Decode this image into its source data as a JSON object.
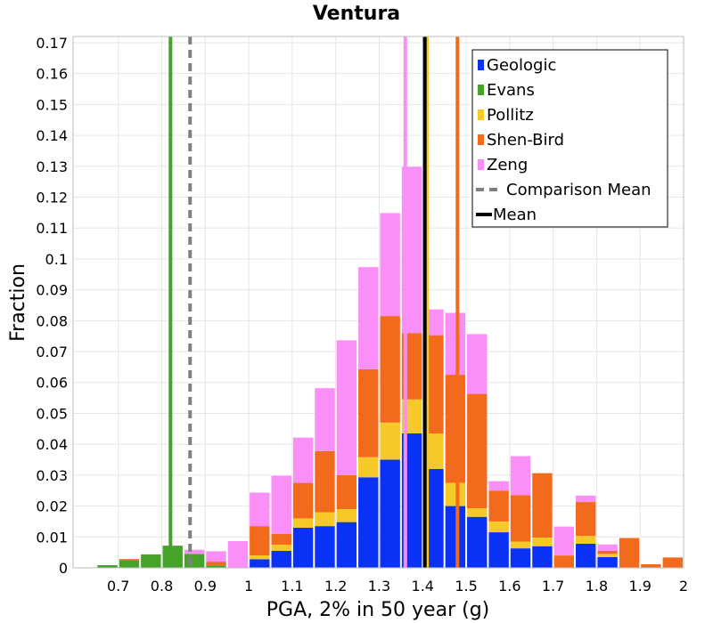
{
  "chart_data": {
    "type": "bar",
    "stacked": true,
    "title": "Ventura",
    "xlabel": "PGA, 2% in 50 year (g)",
    "ylabel": "Fraction",
    "xlim": [
      0.6,
      2.0
    ],
    "ylim": [
      0,
      0.172
    ],
    "bin_width": 0.05,
    "xticks": [
      0.7,
      0.8,
      0.9,
      1,
      1.1,
      1.2,
      1.3,
      1.4,
      1.5,
      1.6,
      1.7,
      1.8,
      1.9,
      2
    ],
    "xtick_labels": [
      "0.7",
      "0.8",
      "0.9",
      "1",
      "1.1",
      "1.2",
      "1.3",
      "1.4",
      "1.5",
      "1.6",
      "1.7",
      "1.8",
      "1.9",
      "2"
    ],
    "yticks": [
      0,
      0.01,
      0.02,
      0.03,
      0.04,
      0.05,
      0.06,
      0.07,
      0.08,
      0.09,
      0.1,
      0.11,
      0.12,
      0.13,
      0.14,
      0.15,
      0.16,
      0.17
    ],
    "ytick_labels": [
      "0",
      "0.01",
      "0.02",
      "0.03",
      "0.04",
      "0.05",
      "0.06",
      "0.07",
      "0.08",
      "0.09",
      "0.1",
      "0.11",
      "0.12",
      "0.13",
      "0.14",
      "0.15",
      "0.16",
      "0.17"
    ],
    "legend_position": "top-right",
    "bins": [
      {
        "x0": 0.65,
        "stack": {
          "Geologic": 0,
          "Evans": 0.001,
          "Pollitz": 0,
          "Shen-Bird": 0,
          "Zeng": 0
        }
      },
      {
        "x0": 0.7,
        "stack": {
          "Geologic": 0,
          "Evans": 0.0025,
          "Pollitz": 0,
          "Shen-Bird": 0.0005,
          "Zeng": 0
        }
      },
      {
        "x0": 0.75,
        "stack": {
          "Geologic": 0,
          "Evans": 0.0045,
          "Pollitz": 0,
          "Shen-Bird": 0,
          "Zeng": 0
        }
      },
      {
        "x0": 0.8,
        "stack": {
          "Geologic": 0,
          "Evans": 0.0073,
          "Pollitz": 0,
          "Shen-Bird": 0,
          "Zeng": 0
        }
      },
      {
        "x0": 0.85,
        "stack": {
          "Geologic": 0,
          "Evans": 0.0045,
          "Pollitz": 0,
          "Shen-Bird": 0,
          "Zeng": 0.0015
        }
      },
      {
        "x0": 0.9,
        "stack": {
          "Geologic": 0,
          "Evans": 0.0008,
          "Pollitz": 0,
          "Shen-Bird": 0.0012,
          "Zeng": 0.0035
        }
      },
      {
        "x0": 0.95,
        "stack": {
          "Geologic": 0,
          "Evans": 0,
          "Pollitz": 0,
          "Shen-Bird": 0,
          "Zeng": 0.0088
        }
      },
      {
        "x0": 1.0,
        "stack": {
          "Geologic": 0.0028,
          "Evans": 0,
          "Pollitz": 0.0012,
          "Shen-Bird": 0.0095,
          "Zeng": 0.011
        }
      },
      {
        "x0": 1.05,
        "stack": {
          "Geologic": 0.0055,
          "Evans": 0,
          "Pollitz": 0.002,
          "Shen-Bird": 0.0035,
          "Zeng": 0.019
        }
      },
      {
        "x0": 1.1,
        "stack": {
          "Geologic": 0.013,
          "Evans": 0,
          "Pollitz": 0.003,
          "Shen-Bird": 0.0115,
          "Zeng": 0.0148
        }
      },
      {
        "x0": 1.15,
        "stack": {
          "Geologic": 0.0135,
          "Evans": 0,
          "Pollitz": 0.0045,
          "Shen-Bird": 0.0198,
          "Zeng": 0.0205
        }
      },
      {
        "x0": 1.2,
        "stack": {
          "Geologic": 0.0148,
          "Evans": 0,
          "Pollitz": 0.0042,
          "Shen-Bird": 0.011,
          "Zeng": 0.0438
        }
      },
      {
        "x0": 1.25,
        "stack": {
          "Geologic": 0.0293,
          "Evans": 0,
          "Pollitz": 0.0065,
          "Shen-Bird": 0.0285,
          "Zeng": 0.0332
        }
      },
      {
        "x0": 1.3,
        "stack": {
          "Geologic": 0.035,
          "Evans": 0,
          "Pollitz": 0.012,
          "Shen-Bird": 0.0345,
          "Zeng": 0.0335
        }
      },
      {
        "x0": 1.35,
        "stack": {
          "Geologic": 0.0435,
          "Evans": 0,
          "Pollitz": 0.011,
          "Shen-Bird": 0.0215,
          "Zeng": 0.054
        }
      },
      {
        "x0": 1.4,
        "stack": {
          "Geologic": 0.032,
          "Evans": 0,
          "Pollitz": 0.0115,
          "Shen-Bird": 0.0318,
          "Zeng": 0.0085
        }
      },
      {
        "x0": 1.45,
        "stack": {
          "Geologic": 0.02,
          "Evans": 0,
          "Pollitz": 0.0075,
          "Shen-Bird": 0.035,
          "Zeng": 0.0202
        }
      },
      {
        "x0": 1.5,
        "stack": {
          "Geologic": 0.0165,
          "Evans": 0,
          "Pollitz": 0.0028,
          "Shen-Bird": 0.037,
          "Zeng": 0.0195
        }
      },
      {
        "x0": 1.55,
        "stack": {
          "Geologic": 0.0115,
          "Evans": 0,
          "Pollitz": 0.0035,
          "Shen-Bird": 0.01,
          "Zeng": 0.0032
        }
      },
      {
        "x0": 1.6,
        "stack": {
          "Geologic": 0.0063,
          "Evans": 0,
          "Pollitz": 0.0022,
          "Shen-Bird": 0.015,
          "Zeng": 0.0128
        }
      },
      {
        "x0": 1.65,
        "stack": {
          "Geologic": 0.007,
          "Evans": 0,
          "Pollitz": 0.0028,
          "Shen-Bird": 0.021,
          "Zeng": 0
        }
      },
      {
        "x0": 1.7,
        "stack": {
          "Geologic": 0,
          "Evans": 0,
          "Pollitz": 0,
          "Shen-Bird": 0.004,
          "Zeng": 0.0095
        }
      },
      {
        "x0": 1.75,
        "stack": {
          "Geologic": 0.0078,
          "Evans": 0,
          "Pollitz": 0.0025,
          "Shen-Bird": 0.011,
          "Zeng": 0.0022
        }
      },
      {
        "x0": 1.8,
        "stack": {
          "Geologic": 0.0035,
          "Evans": 0,
          "Pollitz": 0.001,
          "Shen-Bird": 0.001,
          "Zeng": 0.0022
        }
      },
      {
        "x0": 1.85,
        "stack": {
          "Geologic": 0,
          "Evans": 0,
          "Pollitz": 0,
          "Shen-Bird": 0.0098,
          "Zeng": 0
        }
      },
      {
        "x0": 1.9,
        "stack": {
          "Geologic": 0,
          "Evans": 0,
          "Pollitz": 0,
          "Shen-Bird": 0.0013,
          "Zeng": 0
        }
      },
      {
        "x0": 1.95,
        "stack": {
          "Geologic": 0,
          "Evans": 0,
          "Pollitz": 0,
          "Shen-Bird": 0.0035,
          "Zeng": 0
        }
      }
    ],
    "series": [
      {
        "name": "Geologic",
        "color": "#0a32f5",
        "mean": 1.405
      },
      {
        "name": "Evans",
        "color": "#47a22a",
        "mean": 0.82
      },
      {
        "name": "Pollitz",
        "color": "#f5c928",
        "mean": 1.41
      },
      {
        "name": "Shen-Bird",
        "color": "#f26b1d",
        "mean": 1.48
      },
      {
        "name": "Zeng",
        "color": "#fb8ff8",
        "mean": 1.36
      }
    ],
    "lines": [
      {
        "name": "Comparison Mean",
        "x": 0.865,
        "color": "#808080",
        "style": "dashed"
      },
      {
        "name": "Mean",
        "x": 1.405,
        "color": "#000000",
        "style": "solid"
      }
    ],
    "legend": [
      {
        "label": "Geologic",
        "kind": "box",
        "color": "#0a32f5"
      },
      {
        "label": "Evans",
        "kind": "box",
        "color": "#47a22a"
      },
      {
        "label": "Pollitz",
        "kind": "box",
        "color": "#f5c928"
      },
      {
        "label": "Shen-Bird",
        "kind": "box",
        "color": "#f26b1d"
      },
      {
        "label": "Zeng",
        "kind": "box",
        "color": "#fb8ff8"
      },
      {
        "label": "Comparison Mean",
        "kind": "dash",
        "color": "#808080"
      },
      {
        "label": "Mean",
        "kind": "line",
        "color": "#000000"
      }
    ]
  }
}
